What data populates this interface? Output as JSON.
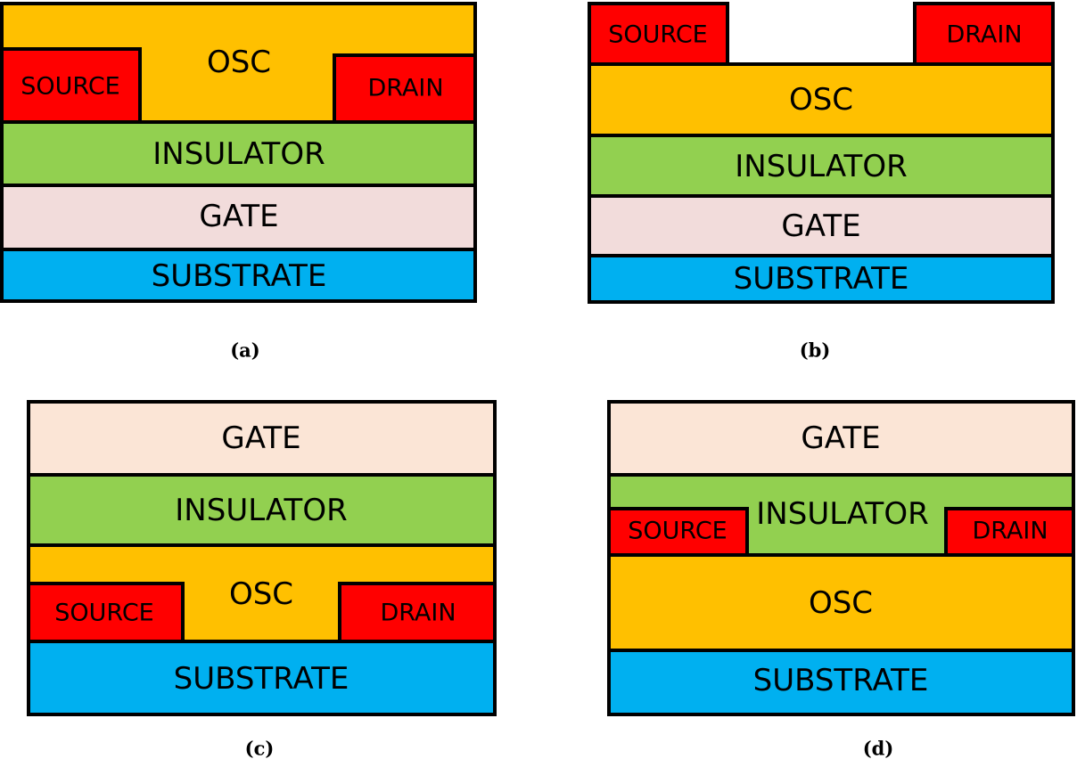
{
  "colors": {
    "osc": "#FFC000",
    "electrode": "#FF0000",
    "insulator": "#92D050",
    "gate_bottom": "#F2DCDB",
    "gate_top": "#FBE5D6",
    "substrate": "#00B0F0",
    "outline": "#000000"
  },
  "panel_a": {
    "caption": "(a)",
    "osc": "OSC",
    "source": "SOURCE",
    "drain": "DRAIN",
    "insulator": "INSULATOR",
    "gate": "GATE",
    "substrate": "SUBSTRATE"
  },
  "panel_b": {
    "caption": "(b)",
    "source": "SOURCE",
    "drain": "DRAIN",
    "osc": "OSC",
    "insulator": "INSULATOR",
    "gate": "GATE",
    "substrate": "SUBSTRATE"
  },
  "panel_c": {
    "caption": "(c)",
    "gate": "GATE",
    "insulator": "INSULATOR",
    "osc": "OSC",
    "source": "SOURCE",
    "drain": "DRAIN",
    "substrate": "SUBSTRATE"
  },
  "panel_d": {
    "caption": "(d)",
    "gate": "GATE",
    "insulator": "INSULATOR",
    "source": "SOURCE",
    "drain": "DRAIN",
    "osc": "OSC",
    "substrate": "SUBSTRATE"
  }
}
